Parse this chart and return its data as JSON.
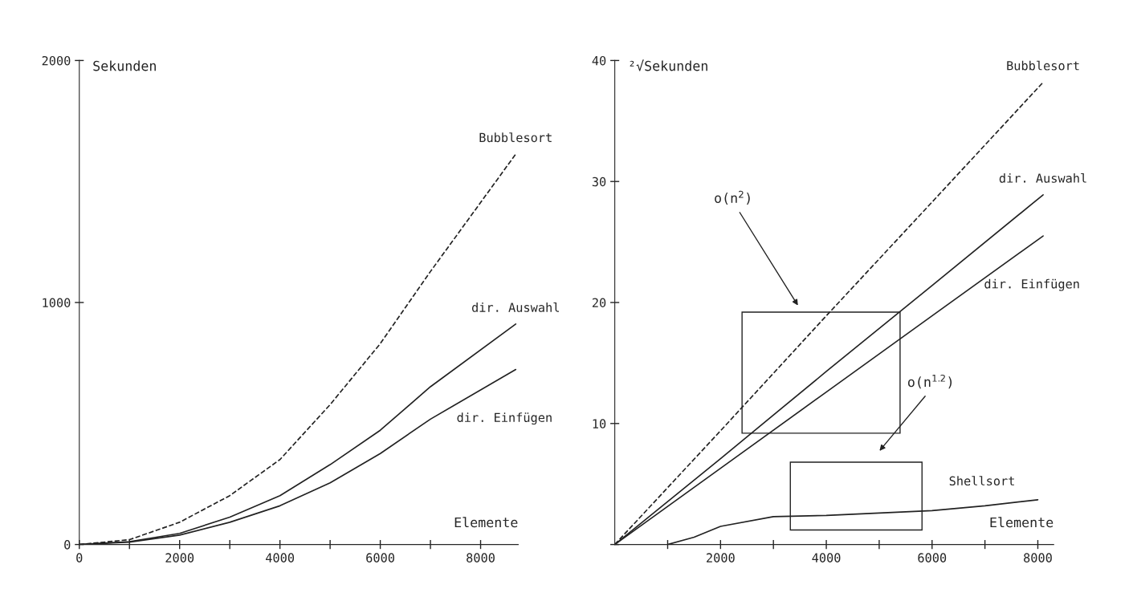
{
  "chart_data": [
    {
      "type": "line",
      "ylabel": "Sekunden",
      "xlabel": "Elemente",
      "xlim": [
        0,
        8750
      ],
      "ylim": [
        0,
        2000
      ],
      "xticks": [
        0,
        {
          "value": 1000,
          "label": null
        },
        2000,
        {
          "value": 3000,
          "label": null
        },
        4000,
        {
          "value": 5000,
          "label": null
        },
        6000,
        {
          "value": 7000,
          "label": null
        },
        8000
      ],
      "yticks": [
        0,
        1000,
        2000
      ],
      "grid": false,
      "legend": false,
      "series": [
        {
          "name": "Bubblesort",
          "color": "#222222",
          "line_style": "dashed",
          "x": [
            0,
            1000,
            2000,
            3000,
            4000,
            5000,
            6000,
            7000,
            8700
          ],
          "values": [
            0,
            20,
            92,
            202,
            351,
            578,
            830,
            1128,
            1613
          ]
        },
        {
          "name": "dir. Auswahl",
          "color": "#222222",
          "line_style": "solid",
          "x": [
            0,
            1000,
            2000,
            3000,
            4000,
            5000,
            6000,
            7000,
            8700
          ],
          "values": [
            0,
            12,
            46,
            113,
            202,
            330,
            472,
            652,
            911
          ]
        },
        {
          "name": "dir. Einfügen",
          "color": "#222222",
          "line_style": "solid",
          "x": [
            0,
            1000,
            2000,
            3000,
            4000,
            5000,
            6000,
            7000,
            8700
          ],
          "values": [
            0,
            10,
            39,
            92,
            160,
            255,
            376,
            518,
            723
          ]
        }
      ]
    },
    {
      "type": "line",
      "ylabel": "²√Sekunden",
      "xlabel": "Elemente",
      "xlim": [
        0,
        8300
      ],
      "ylim": [
        0,
        40
      ],
      "xticks": [
        {
          "value": 1000,
          "label": null
        },
        2000,
        {
          "value": 3000,
          "label": null
        },
        4000,
        {
          "value": 5000,
          "label": null
        },
        6000,
        {
          "value": 7000,
          "label": null
        },
        8000
      ],
      "yticks": [
        {
          "value": 0,
          "label": null
        },
        10,
        20,
        30,
        40
      ],
      "grid": false,
      "legend": false,
      "annotations": [
        "o(n$^{2}$)",
        "o(n$^{1.2}$)"
      ],
      "series": [
        {
          "name": "Bubblesort",
          "color": "#222222",
          "line_style": "dashed",
          "x": [
            0,
            2000,
            4000,
            6000,
            8100
          ],
          "values": [
            0,
            9.4,
            18.9,
            28.3,
            38.2
          ]
        },
        {
          "name": "dir. Auswahl",
          "color": "#222222",
          "line_style": "solid",
          "x": [
            0,
            2000,
            4000,
            6000,
            8100
          ],
          "values": [
            0,
            7.1,
            14.3,
            21.4,
            28.9
          ]
        },
        {
          "name": "dir. Einfügen",
          "color": "#222222",
          "line_style": "solid",
          "x": [
            0,
            2000,
            4000,
            6000,
            8100
          ],
          "values": [
            0,
            6.3,
            12.6,
            18.9,
            25.5
          ]
        },
        {
          "name": "Shellsort",
          "color": "#222222",
          "line_style": "solid",
          "x": [
            1000,
            1500,
            2000,
            3000,
            4000,
            5000,
            6000,
            7000,
            8000
          ],
          "values": [
            0,
            0.6,
            1.5,
            2.3,
            2.4,
            2.6,
            2.8,
            3.2,
            3.7
          ]
        }
      ]
    }
  ]
}
